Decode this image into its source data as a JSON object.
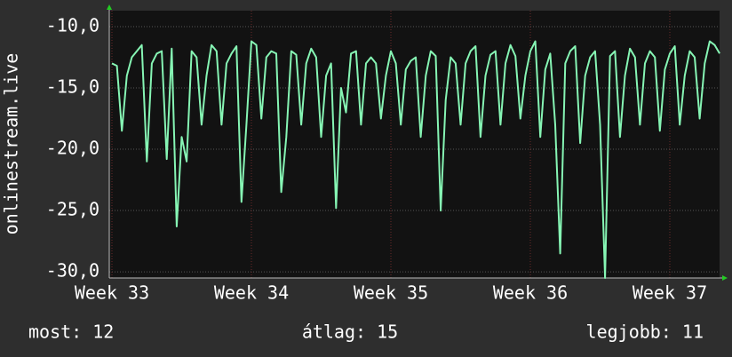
{
  "chart_data": {
    "type": "line",
    "y_label": "onlinestream.live",
    "color": "#86f5b4",
    "categories": [
      "Week 33",
      null,
      null,
      null,
      null,
      null,
      null,
      null,
      null,
      null,
      null,
      null,
      null,
      null,
      null,
      null,
      null,
      null,
      null,
      null,
      null,
      null,
      null,
      null,
      null,
      null,
      null,
      null,
      "Week 34",
      null,
      null,
      null,
      null,
      null,
      null,
      null,
      null,
      null,
      null,
      null,
      null,
      null,
      null,
      null,
      null,
      null,
      null,
      null,
      null,
      null,
      null,
      null,
      null,
      null,
      null,
      null,
      "Week 35",
      null,
      null,
      null,
      null,
      null,
      null,
      null,
      null,
      null,
      null,
      null,
      null,
      null,
      null,
      null,
      null,
      null,
      null,
      null,
      null,
      null,
      null,
      null,
      null,
      null,
      null,
      null,
      "Week 36",
      null,
      null,
      null,
      null,
      null,
      null,
      null,
      null,
      null,
      null,
      null,
      null,
      null,
      null,
      null,
      null,
      null,
      null,
      null,
      null,
      null,
      null,
      null,
      null,
      null,
      null,
      null,
      "Week 37",
      null,
      null,
      null,
      null,
      null,
      null,
      null,
      null,
      null,
      null
    ],
    "values": [
      -13,
      -13.2,
      -18.5,
      -14,
      -12.5,
      -12,
      -11.5,
      -21,
      -13,
      -12.2,
      -12,
      -20.8,
      -11.8,
      -26.3,
      -19,
      -21,
      -12,
      -12.5,
      -18,
      -14,
      -11.5,
      -12,
      -18,
      -13,
      -12.2,
      -11.6,
      -24.3,
      -18,
      -11.2,
      -11.5,
      -17.5,
      -12.5,
      -12,
      -12.2,
      -23.5,
      -19,
      -12,
      -12.3,
      -18,
      -13,
      -11.8,
      -12.5,
      -19,
      -14,
      -13,
      -24.8,
      -15,
      -17,
      -12.2,
      -12,
      -18,
      -13,
      -12.5,
      -13,
      -17.5,
      -14,
      -12,
      -13,
      -18,
      -13.5,
      -12.8,
      -12.5,
      -19,
      -14,
      -12,
      -12.4,
      -25,
      -16,
      -12.5,
      -13,
      -18,
      -13,
      -12,
      -11.6,
      -19,
      -14,
      -12.3,
      -12,
      -18,
      -13,
      -11.5,
      -12.4,
      -17.5,
      -14,
      -12,
      -11.2,
      -19,
      -13.5,
      -12.2,
      -18,
      -28.5,
      -13,
      -12,
      -11.6,
      -19.5,
      -14,
      -12.5,
      -12,
      -18,
      -30.5,
      -12.4,
      -12,
      -19,
      -14,
      -11.8,
      -12.5,
      -18,
      -13,
      -12,
      -12.5,
      -18.5,
      -13.5,
      -12.2,
      -11.6,
      -18,
      -14,
      -12,
      -12.5,
      -17.5,
      -13,
      -11.2,
      -11.5,
      -12.2
    ],
    "ylim": [
      -30.5,
      -8.7
    ],
    "yticks": [
      {
        "value": -30,
        "label": "-30,0"
      },
      {
        "value": -25,
        "label": "-25,0"
      },
      {
        "value": -20,
        "label": "-20,0"
      },
      {
        "value": -15,
        "label": "-15,0"
      },
      {
        "value": -10,
        "label": "-10,0"
      }
    ],
    "grid": true,
    "footer": [
      "most: 12",
      "átlag: 15",
      "legjobb: 11"
    ]
  }
}
